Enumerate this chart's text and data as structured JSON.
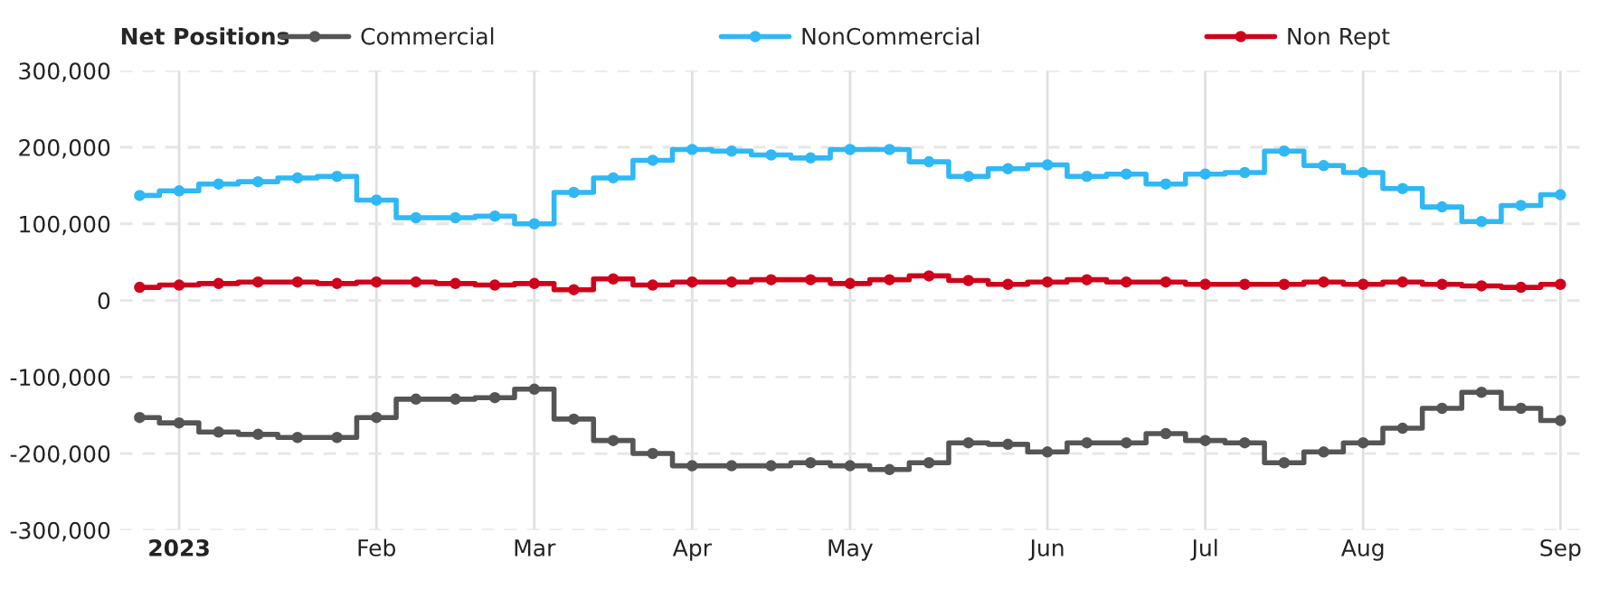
{
  "chart_data": {
    "type": "step",
    "legend_title": "Net Positions",
    "x": [
      "2022-12-27",
      "2023-01-03",
      "2023-01-10",
      "2023-01-17",
      "2023-01-24",
      "2023-01-31",
      "2023-02-07",
      "2023-02-14",
      "2023-02-21",
      "2023-02-28",
      "2023-03-07",
      "2023-03-14",
      "2023-03-21",
      "2023-03-28",
      "2023-04-04",
      "2023-04-11",
      "2023-04-18",
      "2023-04-25",
      "2023-05-02",
      "2023-05-09",
      "2023-05-16",
      "2023-05-23",
      "2023-05-30",
      "2023-06-06",
      "2023-06-13",
      "2023-06-20",
      "2023-06-27",
      "2023-07-04",
      "2023-07-11",
      "2023-07-18",
      "2023-07-25",
      "2023-08-01",
      "2023-08-08",
      "2023-08-15",
      "2023-08-22",
      "2023-08-29",
      "2023-09-05"
    ],
    "series": [
      {
        "name": "Commercial",
        "color": "#555555",
        "values": [
          -153000,
          -160000,
          -172000,
          -175000,
          -179000,
          -179000,
          -153000,
          -129000,
          -129000,
          -127000,
          -116000,
          -155000,
          -183000,
          -200000,
          -216000,
          -216000,
          -216000,
          -212000,
          -216000,
          -221000,
          -212000,
          -186000,
          -188000,
          -198000,
          -186000,
          -186000,
          -174000,
          -183000,
          -186000,
          -212000,
          -198000,
          -186000,
          -167000,
          -141000,
          -120000,
          -141000,
          -157000
        ]
      },
      {
        "name": "NonCommercial",
        "color": "#2fb8f5",
        "values": [
          137000,
          143000,
          152000,
          155000,
          160000,
          162000,
          131000,
          108000,
          108000,
          110000,
          100000,
          141000,
          160000,
          183000,
          197000,
          195000,
          190000,
          186000,
          197000,
          197000,
          181000,
          162000,
          172000,
          177000,
          162000,
          165000,
          152000,
          165000,
          167000,
          195000,
          176000,
          167000,
          146000,
          122000,
          103000,
          124000,
          138000
        ]
      },
      {
        "name": "Non Rept",
        "color": "#d0021b",
        "values": [
          17000,
          20000,
          22000,
          24000,
          24000,
          22000,
          24000,
          24000,
          22000,
          20000,
          22000,
          14000,
          28000,
          20000,
          24000,
          24000,
          27000,
          27000,
          22000,
          27000,
          32000,
          26000,
          21000,
          24000,
          27000,
          24000,
          24000,
          21000,
          21000,
          21000,
          24000,
          21000,
          24000,
          21000,
          19000,
          17000,
          21000
        ]
      }
    ],
    "xlim": [
      "2022-12-23T12:00",
      "2023-09-09"
    ],
    "xticks": [
      {
        "value": "2023-01-03",
        "label": "2023"
      },
      {
        "value": "2023-02-07",
        "label": "Feb"
      },
      {
        "value": "2023-03-07",
        "label": "Mar"
      },
      {
        "value": "2023-04-04",
        "label": "Apr"
      },
      {
        "value": "2023-05-02",
        "label": "May"
      },
      {
        "value": "2023-06-06",
        "label": "Jun"
      },
      {
        "value": "2023-07-04",
        "label": "Jul"
      },
      {
        "value": "2023-08-01",
        "label": "Aug"
      },
      {
        "value": "2023-09-05",
        "label": "Sep"
      }
    ],
    "ylim": [
      -300000,
      300000
    ],
    "yticks": [
      {
        "value": -300000,
        "label": "-300,000"
      },
      {
        "value": -200000,
        "label": "-200,000"
      },
      {
        "value": -100000,
        "label": "-100,000"
      },
      {
        "value": 0,
        "label": "0"
      },
      {
        "value": 100000,
        "label": "100,000"
      },
      {
        "value": 200000,
        "label": "200,000"
      },
      {
        "value": 300000,
        "label": "300,000"
      }
    ],
    "grid": true,
    "legend": "top left",
    "marker": "circle",
    "line_style": "solid"
  }
}
